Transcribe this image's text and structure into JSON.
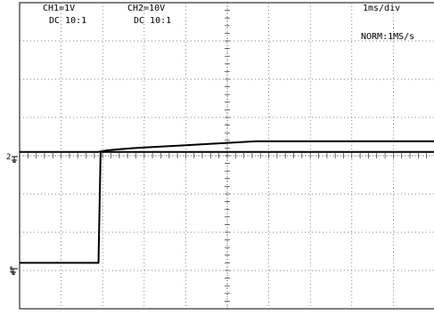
{
  "header": {
    "ch1": {
      "scale": "CH1=1V",
      "coupling": "DC  10:1"
    },
    "ch2": {
      "scale": "CH2=10V",
      "coupling": "DC  10:1"
    },
    "timebase": "1ms/div",
    "trigger_mode": "NORM:1MS/s"
  },
  "markers": {
    "ch2_ground": "2",
    "ch1_ground": "1"
  },
  "chart_data": {
    "type": "line",
    "x_unit": "ms",
    "xlim": [
      0,
      10
    ],
    "grid": true,
    "divisions": {
      "x": 10,
      "y": 8
    },
    "series": [
      {
        "channel": "CH1",
        "volts_per_div": 1,
        "ground_div_from_bottom": 1.2,
        "x": [
          0,
          1.9,
          1.95,
          2.0,
          2.1,
          2.3,
          2.7,
          3.0,
          3.5,
          4.0,
          4.5,
          5.0,
          5.5,
          5.7,
          6.0,
          10
        ],
        "y": [
          0,
          0,
          2.9,
          2.9,
          2.9,
          2.9,
          2.9,
          2.9,
          2.9,
          2.9,
          2.9,
          2.9,
          2.9,
          2.9,
          2.9,
          2.9
        ]
      },
      {
        "channel": "CH2",
        "volts_per_div": 10,
        "ground_div_from_bottom": 4.1,
        "x": [
          0,
          1.9,
          2.0,
          2.1,
          2.3,
          2.7,
          3.0,
          3.5,
          4.0,
          4.5,
          5.0,
          5.5,
          5.7,
          6.0,
          10
        ],
        "y": [
          0,
          0,
          0.2,
          0.4,
          0.6,
          0.95,
          1.15,
          1.45,
          1.75,
          2.05,
          2.35,
          2.65,
          2.8,
          2.8,
          2.8
        ]
      }
    ]
  }
}
